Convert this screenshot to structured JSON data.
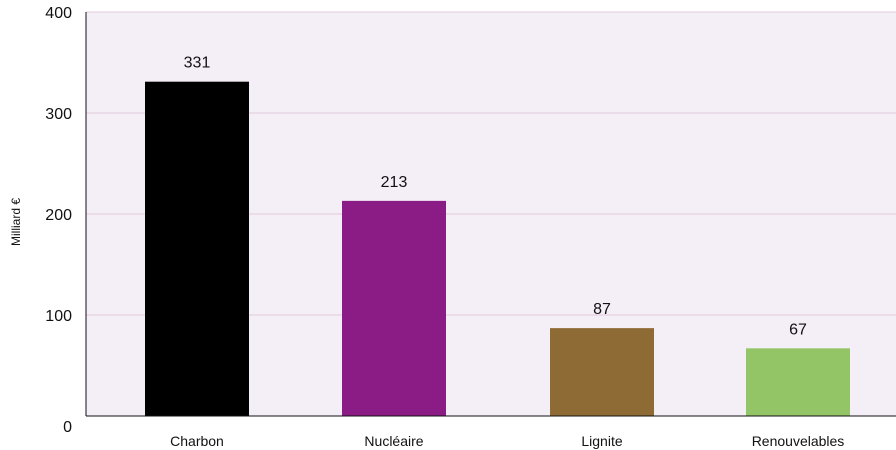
{
  "chart_data": {
    "type": "bar",
    "title": "",
    "xlabel": "",
    "ylabel": "Milliard €",
    "categories": [
      "Charbon",
      "Nucléaire",
      "Lignite",
      "Renouvelables"
    ],
    "values": [
      331,
      213,
      87,
      67
    ],
    "data_labels": [
      "331",
      "213",
      "87",
      "67"
    ],
    "ylim": [
      0,
      400
    ],
    "yticks": [
      0,
      100,
      200,
      300,
      400
    ],
    "ytick_labels": [
      "0",
      "100",
      "200",
      "300",
      "400"
    ],
    "grid": true,
    "legend": "none",
    "bar_colors": [
      "#000000",
      "#8b1c85",
      "#8e6a34",
      "#93c466"
    ],
    "colors": {
      "plot_background": "#f4eef7",
      "gridline": "#e2c9dc",
      "axis": "#111111"
    }
  }
}
